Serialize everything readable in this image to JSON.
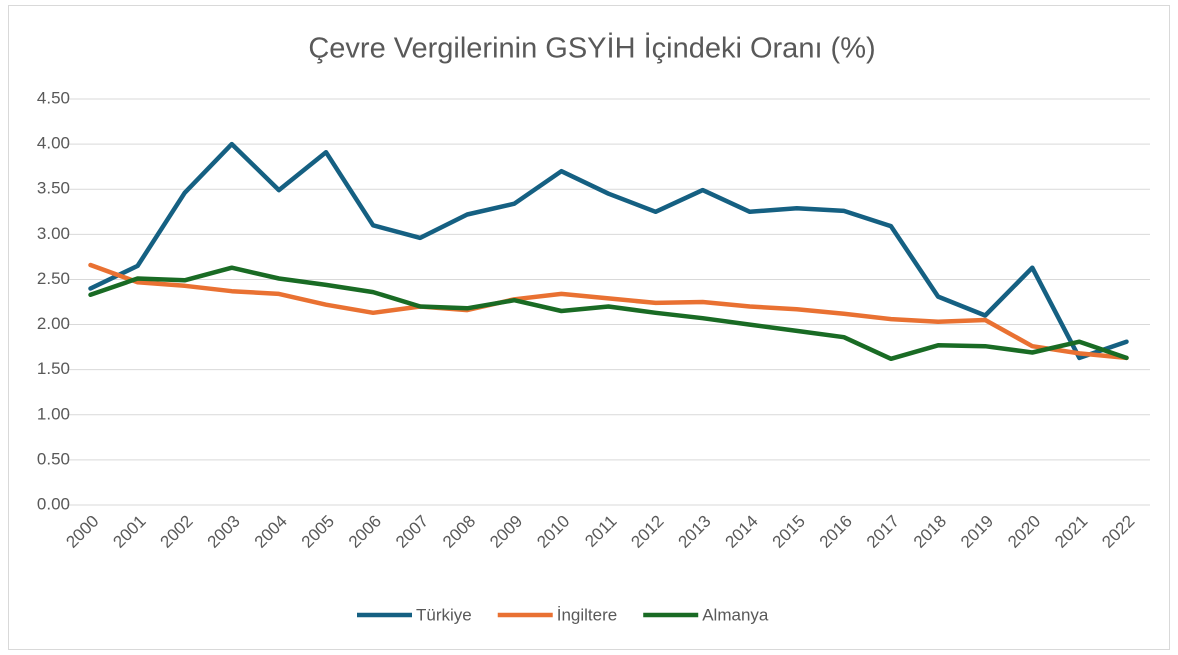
{
  "chart_data": {
    "type": "line",
    "title": "Çevre Vergilerinin GSYİH İçindeki Oranı (%)",
    "categories": [
      "2000",
      "2001",
      "2002",
      "2003",
      "2004",
      "2005",
      "2006",
      "2007",
      "2008",
      "2009",
      "2010",
      "2011",
      "2012",
      "2013",
      "2014",
      "2015",
      "2016",
      "2017",
      "2018",
      "2019",
      "2020",
      "2021",
      "2022"
    ],
    "series": [
      {
        "name": "Türkiye",
        "color": "#156082",
        "values": [
          2.4,
          2.65,
          3.46,
          4.0,
          3.49,
          3.91,
          3.1,
          2.96,
          3.22,
          3.34,
          3.7,
          3.45,
          3.25,
          3.49,
          3.25,
          3.29,
          3.26,
          3.09,
          2.31,
          2.1,
          2.63,
          1.63,
          1.81
        ]
      },
      {
        "name": "İngiltere",
        "color": "#e97132",
        "values": [
          2.66,
          2.47,
          2.43,
          2.37,
          2.34,
          2.22,
          2.13,
          2.2,
          2.16,
          2.28,
          2.34,
          2.29,
          2.24,
          2.25,
          2.2,
          2.17,
          2.12,
          2.06,
          2.03,
          2.05,
          1.76,
          1.68,
          1.63
        ]
      },
      {
        "name": "Almanya",
        "color": "#196b24",
        "values": [
          2.33,
          2.51,
          2.49,
          2.63,
          2.51,
          2.44,
          2.36,
          2.2,
          2.18,
          2.27,
          2.15,
          2.2,
          2.13,
          2.07,
          2.0,
          1.93,
          1.86,
          1.62,
          1.77,
          1.76,
          1.69,
          1.81,
          1.63
        ]
      }
    ],
    "ylim": [
      0,
      4.5
    ],
    "yticks": [
      {
        "value": 0,
        "label": "0.00"
      },
      {
        "value": 0.5,
        "label": "0.50"
      },
      {
        "value": 1,
        "label": "1.00"
      },
      {
        "value": 1.5,
        "label": "1.50"
      },
      {
        "value": 2,
        "label": "2.00"
      },
      {
        "value": 2.5,
        "label": "2.50"
      },
      {
        "value": 3,
        "label": "3.00"
      },
      {
        "value": 3.5,
        "label": "3.50"
      },
      {
        "value": 4,
        "label": "4.00"
      },
      {
        "value": 4.5,
        "label": "4.50"
      }
    ],
    "grid": true,
    "legend": "bottom"
  }
}
